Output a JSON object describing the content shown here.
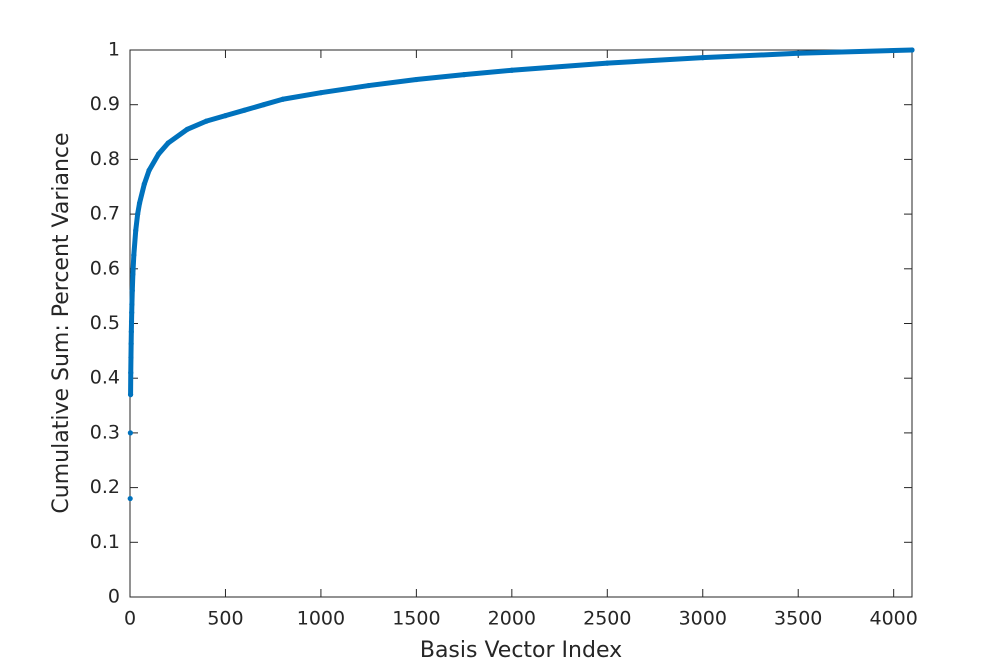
{
  "chart_data": {
    "type": "scatter",
    "xlabel": "Basis Vector Index",
    "ylabel": "Cumulative Sum: Percent Variance",
    "series": [
      {
        "color": "#0072bd",
        "x": [
          1,
          2,
          3,
          4,
          5,
          6,
          7,
          8,
          9,
          10,
          12,
          15,
          20,
          30,
          40,
          50,
          75,
          100,
          150,
          200,
          300,
          400,
          500,
          600,
          700,
          800,
          1000,
          1250,
          1500,
          1750,
          2000,
          2500,
          3000,
          3500,
          4096
        ],
        "values": [
          0.18,
          0.3,
          0.37,
          0.41,
          0.438,
          0.463,
          0.485,
          0.503,
          0.52,
          0.535,
          0.56,
          0.59,
          0.625,
          0.67,
          0.7,
          0.72,
          0.755,
          0.78,
          0.81,
          0.83,
          0.855,
          0.87,
          0.88,
          0.89,
          0.9,
          0.91,
          0.922,
          0.935,
          0.946,
          0.955,
          0.963,
          0.976,
          0.986,
          0.994,
          1.0
        ]
      }
    ],
    "xlim": [
      0,
      4096
    ],
    "xticks": [
      0,
      500,
      1000,
      1500,
      2000,
      2500,
      3000,
      3500,
      4000
    ],
    "ylim": [
      0,
      1
    ],
    "yticks": [
      0,
      0.1,
      0.2,
      0.3,
      0.4,
      0.5,
      0.6,
      0.7,
      0.8,
      0.9,
      1
    ],
    "grid": false
  }
}
